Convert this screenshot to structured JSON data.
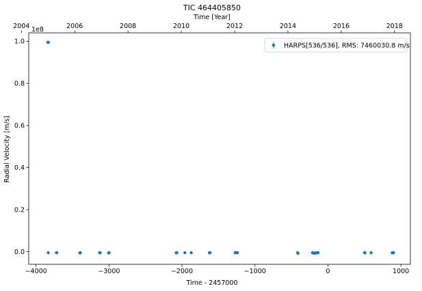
{
  "chart_data": {
    "type": "scatter",
    "title": "TIC 464405850",
    "xlabel": "Time - 2457000",
    "ylabel": "Radial Velocity [m/s]",
    "top_xlabel": "Time [Year]",
    "y_multiplier": "1e8",
    "xlim": [
      -4100,
      1130
    ],
    "ylim": [
      -0.06,
      1.04
    ],
    "xticks": [
      -4000,
      -3000,
      -2000,
      -1000,
      0,
      1000
    ],
    "yticks": [
      0.0,
      0.2,
      0.4,
      0.6,
      0.8,
      1.0
    ],
    "top_xticks": [
      2004,
      2006,
      2008,
      2010,
      2012,
      2014,
      2016,
      2018
    ],
    "grid": false,
    "legend": "top-right",
    "series": [
      {
        "name": "HARPS[536/536], RMS: 7460030.8 m/s",
        "color": "#1f77b4",
        "x": [
          -3838,
          -3830,
          -3833,
          -3720,
          -3715,
          -3400,
          -3392,
          -3130,
          -3120,
          -3005,
          -2998,
          -2080,
          -2070,
          -1960,
          -1873,
          -1625,
          -1615,
          -1270,
          -1255,
          -1240,
          -415,
          -410,
          -212,
          -200,
          -188,
          -170,
          -150,
          -135,
          502,
          508,
          592,
          880,
          890,
          900
        ],
        "y": [
          0.995,
          0.995,
          -0.005,
          -0.005,
          -0.005,
          -0.006,
          -0.005,
          -0.005,
          -0.005,
          -0.006,
          -0.005,
          -0.005,
          -0.005,
          -0.005,
          -0.005,
          -0.005,
          -0.005,
          -0.005,
          -0.005,
          -0.005,
          -0.005,
          -0.008,
          -0.005,
          -0.006,
          -0.008,
          -0.006,
          -0.005,
          -0.005,
          -0.005,
          -0.005,
          -0.005,
          -0.005,
          -0.005,
          -0.005
        ]
      }
    ]
  }
}
